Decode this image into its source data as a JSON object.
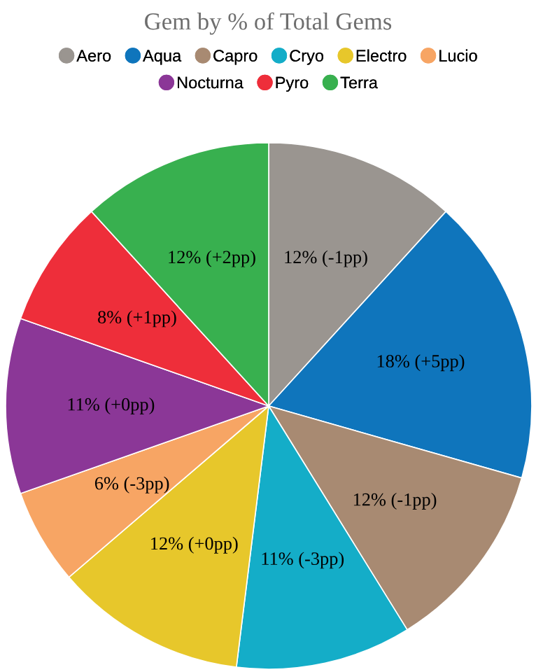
{
  "chart_data": {
    "type": "pie",
    "title": "Gem by % of Total Gems",
    "legend": "top",
    "categories": [
      "Aero",
      "Aqua",
      "Capro",
      "Cryo",
      "Electro",
      "Lucio",
      "Nocturna",
      "Pyro",
      "Terra"
    ],
    "values": [
      12,
      18,
      12,
      11,
      12,
      6,
      11,
      8,
      12
    ],
    "colors": [
      "#9a9590",
      "#0f75bc",
      "#a88a72",
      "#14adc8",
      "#e7c72b",
      "#f7a564",
      "#8b3797",
      "#ee2e3a",
      "#38b04f"
    ],
    "value_labels": [
      "12% (-1pp)",
      "18% (+5pp)",
      "12% (-1pp)",
      "11% (-3pp)",
      "12% (+0pp)",
      "6% (-3pp)",
      "11% (+0pp)",
      "8% (+1pp)",
      "12% (+2pp)"
    ]
  }
}
